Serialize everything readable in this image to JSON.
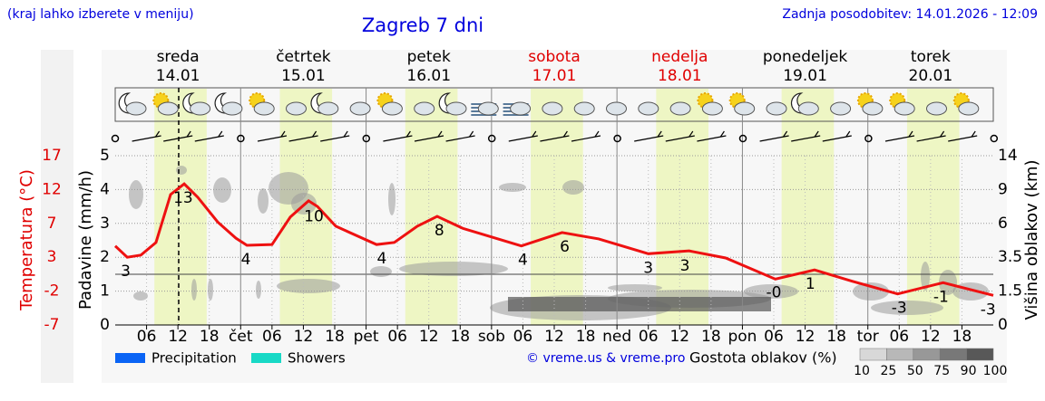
{
  "header": {
    "note": "(kraj lahko izberete v meniju)",
    "updated": "Zadnja posodobitev: 14.01.2026 - 12:09"
  },
  "chart_data": {
    "type": "line",
    "title": "Zagreb 7 dni",
    "days": [
      {
        "name": "sreda",
        "date": "14.01",
        "color": "#000000"
      },
      {
        "name": "četrtek",
        "date": "15.01",
        "color": "#000000"
      },
      {
        "name": "petek",
        "date": "16.01",
        "color": "#000000"
      },
      {
        "name": "sobota",
        "date": "17.01",
        "color": "#e00000"
      },
      {
        "name": "nedelja",
        "date": "18.01",
        "color": "#e00000"
      },
      {
        "name": "ponedeljek",
        "date": "19.01",
        "color": "#000000"
      },
      {
        "name": "torek",
        "date": "20.01",
        "color": "#000000"
      }
    ],
    "ylabel": "Padavine (mm/h)",
    "ylim": [
      0,
      5
    ],
    "yticks": [
      0,
      1,
      2,
      3,
      4,
      5
    ],
    "grid": true,
    "temperature_axis": {
      "label": "Temperatura (°C)",
      "lim": [
        -7,
        17
      ],
      "ticks": [
        17,
        12,
        7,
        3,
        -2,
        -7
      ],
      "color": "#e00000"
    },
    "cloud_height_axis": {
      "label": "Višina oblakov (km)",
      "ticks": [
        0,
        1.5,
        3.5,
        6,
        9,
        14
      ]
    },
    "xlim": [
      0,
      168
    ],
    "xticks": [
      {
        "value": 6,
        "label": "06"
      },
      {
        "value": 12,
        "label": "12"
      },
      {
        "value": 18,
        "label": "18"
      },
      {
        "value": 24,
        "label": "čet"
      },
      {
        "value": 30,
        "label": "06"
      },
      {
        "value": 36,
        "label": "12"
      },
      {
        "value": 42,
        "label": "18"
      },
      {
        "value": 48,
        "label": "pet"
      },
      {
        "value": 54,
        "label": "06"
      },
      {
        "value": 60,
        "label": "12"
      },
      {
        "value": 66,
        "label": "18"
      },
      {
        "value": 72,
        "label": "sob"
      },
      {
        "value": 78,
        "label": "06"
      },
      {
        "value": 84,
        "label": "12"
      },
      {
        "value": 90,
        "label": "18"
      },
      {
        "value": 96,
        "label": "ned"
      },
      {
        "value": 102,
        "label": "06"
      },
      {
        "value": 108,
        "label": "12"
      },
      {
        "value": 114,
        "label": "18"
      },
      {
        "value": 120,
        "label": "pon"
      },
      {
        "value": 126,
        "label": "06"
      },
      {
        "value": 132,
        "label": "12"
      },
      {
        "value": 138,
        "label": "18"
      },
      {
        "value": 144,
        "label": "tor"
      },
      {
        "value": 150,
        "label": "06"
      },
      {
        "value": 156,
        "label": "12"
      },
      {
        "value": 162,
        "label": "18"
      }
    ],
    "current_time": 12.15,
    "series": [
      {
        "color": "#ee1111",
        "axis": "temperature",
        "x": [
          0,
          2.3,
          4.9,
          7.8,
          10.6,
          13.2,
          15.8,
          19.6,
          23.1,
          25.2,
          30,
          33.5,
          37,
          38.7,
          42.2,
          50,
          53.4,
          57.8,
          61.6,
          66.5,
          77.7,
          85.5,
          92.5,
          102,
          109.8,
          116.8,
          126.3,
          133.8,
          141,
          149.7,
          158.4,
          168
        ],
        "values": [
          4.2,
          2.6,
          2.9,
          4.7,
          11.5,
          13,
          11.1,
          7.6,
          5.3,
          4.3,
          4.4,
          8.3,
          10.6,
          9.8,
          7,
          4.4,
          4.7,
          7,
          8.4,
          6.7,
          4.2,
          6.1,
          5.2,
          3.1,
          3.5,
          2.5,
          -0.5,
          0.8,
          -0.8,
          -2.6,
          -1,
          -2.8
        ]
      }
    ],
    "temp_labels": [
      {
        "x": 2,
        "value": 2.6,
        "label": "3"
      },
      {
        "x": 13,
        "value": 13,
        "label": "13"
      },
      {
        "x": 25,
        "value": 4.3,
        "label": "4"
      },
      {
        "x": 38,
        "value": 10.4,
        "label": "10"
      },
      {
        "x": 51,
        "value": 4.4,
        "label": "4"
      },
      {
        "x": 62,
        "value": 8.4,
        "label": "8"
      },
      {
        "x": 78,
        "value": 4.2,
        "label": "4"
      },
      {
        "x": 86,
        "value": 6.1,
        "label": "6"
      },
      {
        "x": 102,
        "value": 3.1,
        "label": "3"
      },
      {
        "x": 109,
        "value": 3.4,
        "label": "3"
      },
      {
        "x": 126,
        "value": -0.4,
        "label": "-0"
      },
      {
        "x": 133,
        "value": 0.8,
        "label": "1"
      },
      {
        "x": 150,
        "value": -2.6,
        "label": "-3"
      },
      {
        "x": 158,
        "value": -1,
        "label": "-1"
      },
      {
        "x": 167,
        "value": -2.8,
        "label": "-3"
      }
    ],
    "legend": [
      {
        "name": "Precipitation",
        "color": "#0a64f5"
      },
      {
        "name": "Showers",
        "color": "#18d9c6"
      }
    ],
    "credit": "© vreme.us & vreme.pro",
    "density_legend": {
      "title": "Gostota oblakov (%)",
      "ticks": [
        10,
        25,
        50,
        75,
        90,
        100
      ],
      "colors": [
        "#d8d8d8",
        "#b8b8b8",
        "#989898",
        "#787878",
        "#585858"
      ]
    }
  }
}
